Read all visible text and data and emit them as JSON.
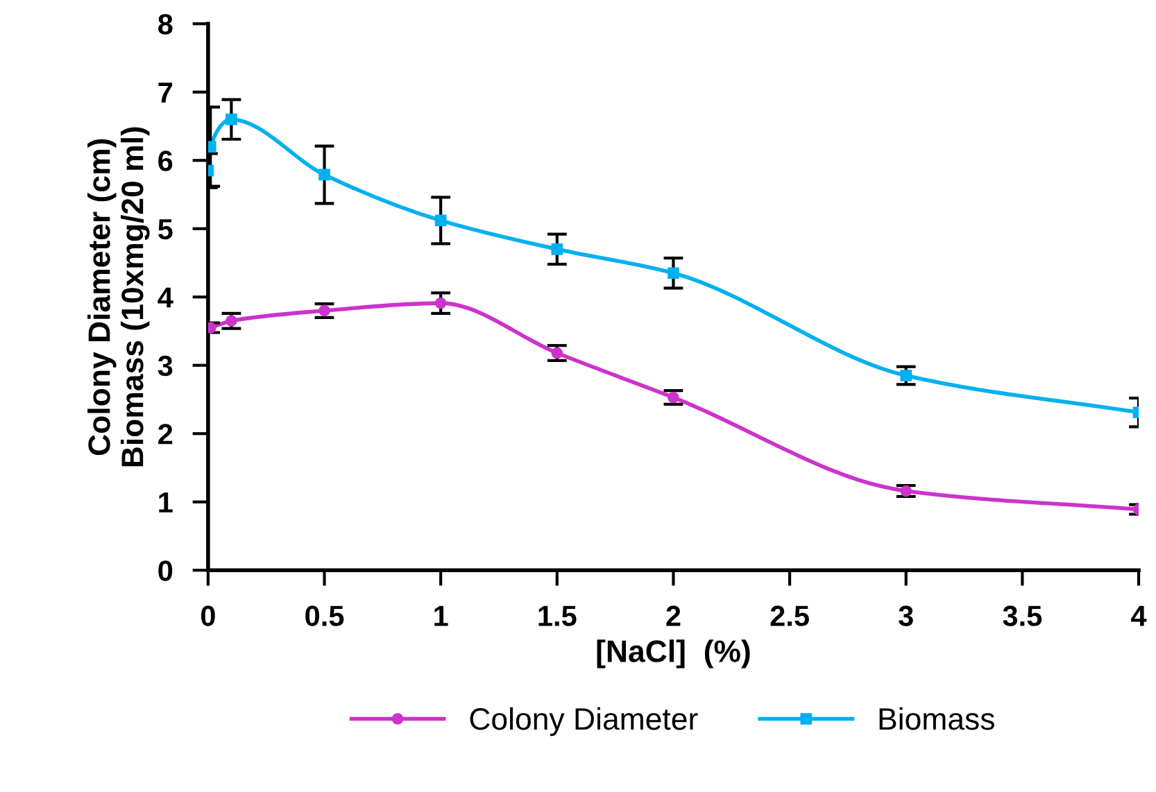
{
  "chart_data": {
    "type": "line",
    "xlabel": "[NaCl]  (%)",
    "ylabel": "Colony Diameter (cm)\nBiomass (10xmg/20 ml)",
    "xlim": [
      0,
      4
    ],
    "xticks": [
      0,
      0.5,
      1,
      1.5,
      2,
      2.5,
      3,
      3.5,
      4
    ],
    "ylim": [
      0,
      8
    ],
    "yticks": [
      0,
      1,
      2,
      3,
      4,
      5,
      6,
      7,
      8
    ],
    "grid": false,
    "legend": "bottom",
    "line_style": "solid",
    "series": [
      {
        "name": "Colony Diameter",
        "color": "#cc33cc",
        "marker": "circle",
        "x": [
          0.01,
          0.1,
          0.5,
          1,
          1.5,
          2,
          3,
          4
        ],
        "values": [
          3.55,
          3.65,
          3.8,
          3.91,
          3.18,
          2.53,
          1.16,
          0.89
        ],
        "errors": [
          0.07,
          0.11,
          0.1,
          0.15,
          0.11,
          0.1,
          0.08,
          0.07
        ]
      },
      {
        "name": "Biomass",
        "color": "#00b0f0",
        "marker": "square",
        "x": [
          0,
          0.01,
          0.1,
          0.5,
          1,
          1.5,
          2,
          3,
          4
        ],
        "values": [
          5.85,
          6.2,
          6.6,
          5.79,
          5.12,
          4.7,
          4.35,
          2.85,
          2.31
        ],
        "errors": [
          0.25,
          0.58,
          0.29,
          0.42,
          0.34,
          0.22,
          0.22,
          0.13,
          0.21
        ]
      }
    ]
  }
}
